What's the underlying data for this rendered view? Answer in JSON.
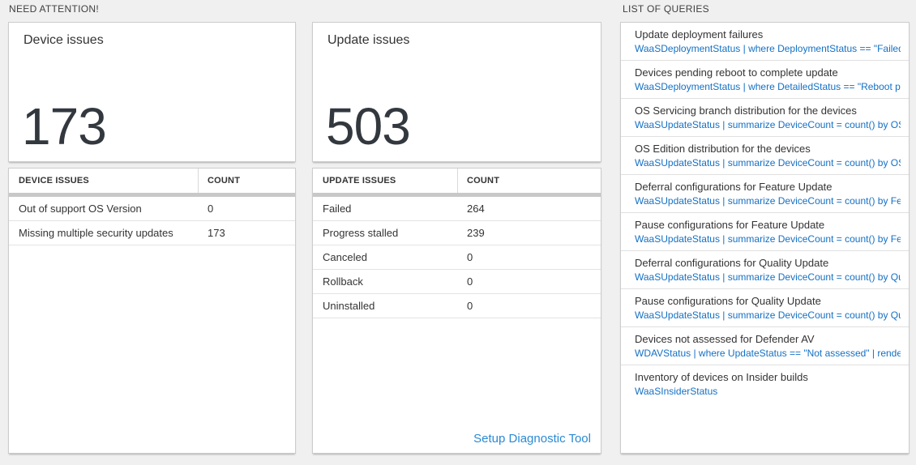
{
  "colors": {
    "page_bg": "#f0f0f0",
    "accent_number": "#32383e",
    "link_blue": "#2a8ad4",
    "query_blue": "#1470c4",
    "header_bar_gray": "#c8c8c8"
  },
  "need_attention": {
    "section_label": "NEED ATTENTION!",
    "device_tile": {
      "title": "Device issues",
      "value": "173"
    },
    "device_table": {
      "col_issue": "DEVICE ISSUES",
      "col_count": "COUNT",
      "rows": [
        {
          "label": "Out of support OS Version",
          "count": "0"
        },
        {
          "label": "Missing multiple security updates",
          "count": "173"
        }
      ]
    },
    "update_tile": {
      "title": "Update issues",
      "value": "503"
    },
    "update_table": {
      "col_issue": "UPDATE ISSUES",
      "col_count": "COUNT",
      "rows": [
        {
          "label": "Failed",
          "count": "264"
        },
        {
          "label": "Progress stalled",
          "count": "239"
        },
        {
          "label": "Canceled",
          "count": "0"
        },
        {
          "label": "Rollback",
          "count": "0"
        },
        {
          "label": "Uninstalled",
          "count": "0"
        }
      ],
      "footer_link": "Setup Diagnostic Tool"
    }
  },
  "query_panel": {
    "section_label": "LIST OF QUERIES",
    "items": [
      {
        "title": "Update deployment failures",
        "query": "WaaSDeploymentStatus | where DeploymentStatus == \"Failed\" |..."
      },
      {
        "title": "Devices pending reboot to complete update",
        "query": "WaaSDeploymentStatus | where DetailedStatus == \"Reboot pend..."
      },
      {
        "title": "OS Servicing branch distribution for the devices",
        "query": "WaaSUpdateStatus | summarize DeviceCount = count() by OSSer..."
      },
      {
        "title": "OS Edition distribution for the devices",
        "query": "WaaSUpdateStatus | summarize DeviceCount = count() by OSEdit..."
      },
      {
        "title": "Deferral configurations for Feature Update",
        "query": "WaaSUpdateStatus | summarize DeviceCount = count() by Featur..."
      },
      {
        "title": "Pause configurations for Feature Update",
        "query": "WaaSUpdateStatus | summarize DeviceCount = count() by Featur..."
      },
      {
        "title": "Deferral configurations for Quality Update",
        "query": "WaaSUpdateStatus | summarize DeviceCount = count() by Qualit..."
      },
      {
        "title": "Pause configurations for Quality Update",
        "query": "WaaSUpdateStatus | summarize DeviceCount = count() by Qualit..."
      },
      {
        "title": "Devices not assessed for Defender AV",
        "query": "WDAVStatus | where UpdateStatus == \"Not assessed\" | render ta..."
      },
      {
        "title": "Inventory of devices on Insider builds",
        "query": "WaaSInsiderStatus"
      }
    ]
  }
}
